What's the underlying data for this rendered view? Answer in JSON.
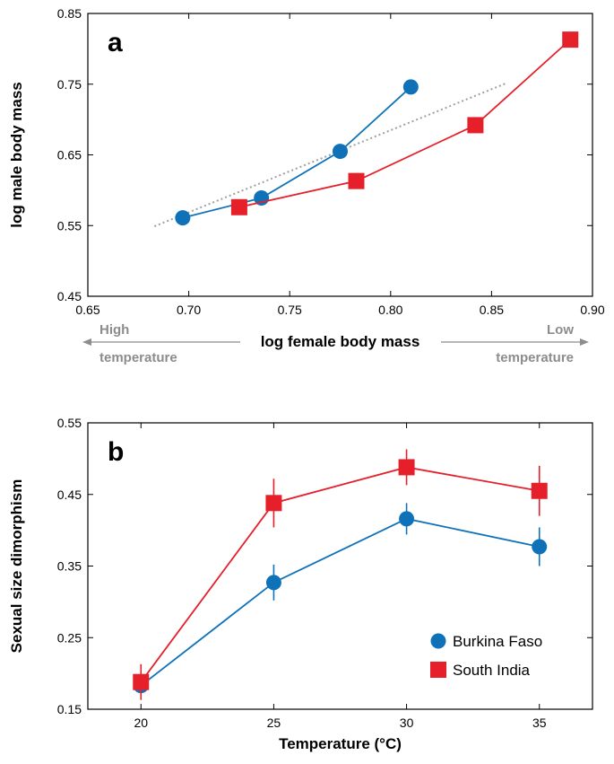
{
  "chart_data": [
    {
      "type": "line",
      "panel_label": "a",
      "xlabel": "log female body mass",
      "ylabel": "log male body mass",
      "xlim": [
        0.65,
        0.9
      ],
      "ylim": [
        0.45,
        0.85
      ],
      "x_ticks": [
        "0.65",
        "0.70",
        "0.75",
        "0.80",
        "0.85",
        "0.90"
      ],
      "y_ticks": [
        "0.45",
        "0.55",
        "0.65",
        "0.75",
        "0.85"
      ],
      "temperature_notes": {
        "left": [
          "High",
          "temperature"
        ],
        "right": [
          "Low",
          "temperature"
        ]
      },
      "reference_line": {
        "style": "dotted",
        "color": "#a0a0a0",
        "x": [
          0.683,
          0.857
        ],
        "y": [
          0.549,
          0.751
        ]
      },
      "series": [
        {
          "marker": "circle",
          "color": "#0f72b9",
          "x": [
            0.697,
            0.736,
            0.775,
            0.81
          ],
          "y": [
            0.561,
            0.589,
            0.655,
            0.746
          ]
        },
        {
          "marker": "square",
          "color": "#e5202a",
          "x": [
            0.725,
            0.783,
            0.842,
            0.889
          ],
          "y": [
            0.576,
            0.613,
            0.692,
            0.813
          ]
        }
      ],
      "grid": false
    },
    {
      "type": "line",
      "panel_label": "b",
      "xlabel": "Temperature (°C)",
      "ylabel": "Sexual size dimorphism",
      "xlim": [
        18,
        37
      ],
      "ylim": [
        0.15,
        0.55
      ],
      "x_ticks": [
        "20",
        "25",
        "30",
        "35"
      ],
      "y_ticks": [
        "0.15",
        "0.25",
        "0.35",
        "0.45",
        "0.55"
      ],
      "legend_position": "bottom-right",
      "series": [
        {
          "name": "Burkina Faso",
          "marker": "circle",
          "color": "#0f72b9",
          "x": [
            20,
            25,
            30,
            35
          ],
          "y": [
            0.183,
            0.327,
            0.416,
            0.377
          ],
          "err": [
            0.012,
            0.025,
            0.022,
            0.027
          ]
        },
        {
          "name": "South India",
          "marker": "square",
          "color": "#e5202a",
          "x": [
            20,
            25,
            30,
            35
          ],
          "y": [
            0.188,
            0.438,
            0.488,
            0.455
          ],
          "err": [
            0.025,
            0.034,
            0.025,
            0.035
          ]
        }
      ],
      "grid": false
    }
  ]
}
